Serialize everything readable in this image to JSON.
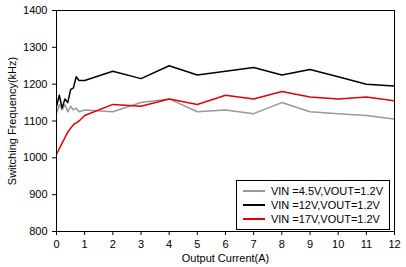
{
  "chart_data": {
    "type": "line",
    "x_label": "Output Current(A)",
    "y_label": "Switching Frequency(kHz)",
    "x": [
      0,
      0.1,
      0.2,
      0.3,
      0.4,
      0.5,
      0.6,
      0.7,
      0.8,
      1,
      2,
      3,
      4,
      5,
      6,
      7,
      8,
      9,
      10,
      11,
      12
    ],
    "series": [
      {
        "name": "VIN =4.5V,VOUT=1.2V",
        "color": "#999999",
        "values": [
          1120,
          1145,
          1130,
          1145,
          1125,
          1140,
          1130,
          1135,
          1125,
          1130,
          1125,
          1150,
          1160,
          1125,
          1130,
          1120,
          1150,
          1125,
          1120,
          1115,
          1105
        ]
      },
      {
        "name": "VIN =12V,VOUT=1.2V",
        "color": "#000000",
        "values": [
          1140,
          1170,
          1135,
          1160,
          1150,
          1185,
          1190,
          1220,
          1210,
          1210,
          1235,
          1215,
          1250,
          1225,
          1235,
          1245,
          1225,
          1240,
          1220,
          1200,
          1195
        ]
      },
      {
        "name": "VIN =17V,VOUT=1.2V",
        "color": "#e00000",
        "values": [
          1010,
          1025,
          1040,
          1055,
          1070,
          1080,
          1090,
          1095,
          1100,
          1115,
          1145,
          1140,
          1160,
          1145,
          1170,
          1160,
          1180,
          1165,
          1160,
          1165,
          1155
        ]
      }
    ],
    "xlim": [
      0,
      12
    ],
    "xticks": [
      0,
      1,
      2,
      3,
      4,
      5,
      6,
      7,
      8,
      9,
      10,
      11,
      12
    ],
    "ylim": [
      800,
      1400
    ],
    "yticks": [
      800,
      900,
      1000,
      1100,
      1200,
      1300,
      1400
    ],
    "grid": false,
    "legend": "bottom-right"
  }
}
